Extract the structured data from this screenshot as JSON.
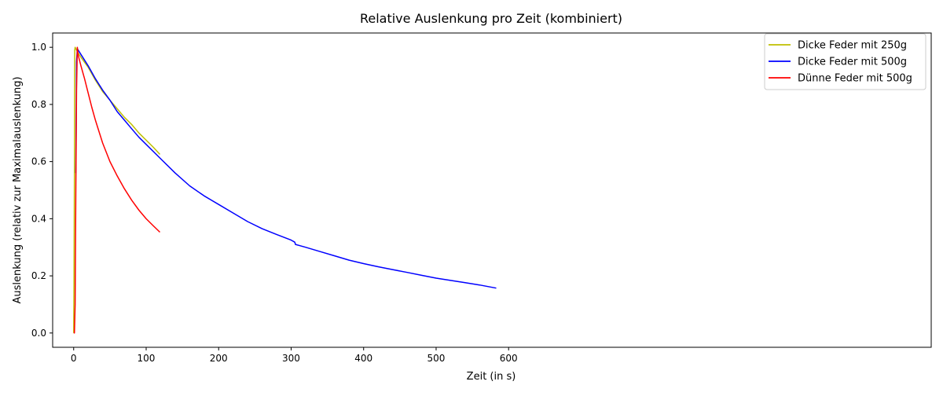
{
  "chart_data": {
    "type": "line",
    "title": "Relative Auslenkung pro Zeit (kombiniert)",
    "xlabel": "Zeit (in s)",
    "ylabel": "Auslenkung (relativ zur Maximalauslenkung)",
    "xlim": [
      -29,
      1183
    ],
    "ylim": [
      -0.05,
      1.05
    ],
    "xticks": [
      0,
      100,
      200,
      300,
      400,
      500,
      600
    ],
    "xtick_labels": [
      "0",
      "100",
      "200",
      "300",
      "400",
      "500",
      "600"
    ],
    "yticks": [
      0.0,
      0.2,
      0.4,
      0.6,
      0.8,
      1.0
    ],
    "ytick_labels": [
      "0.0",
      "0.2",
      "0.4",
      "0.6",
      "0.8",
      "1.0"
    ],
    "grid": false,
    "legend_position": "top-right",
    "series": [
      {
        "name": "Dicke Feder mit 250g",
        "color": "#bfbf00",
        "x": [
          0,
          0.5,
          1,
          1.5,
          2,
          3,
          5,
          10,
          20,
          30,
          40,
          50,
          60,
          70,
          80,
          90,
          100,
          110,
          119
        ],
        "y": [
          0.0,
          0.2,
          0.55,
          0.99,
          1.0,
          0.995,
          0.985,
          0.965,
          0.93,
          0.885,
          0.845,
          0.815,
          0.785,
          0.755,
          0.73,
          0.7,
          0.675,
          0.65,
          0.625
        ]
      },
      {
        "name": "Dicke Feder mit 500g",
        "color": "#0000ff",
        "x": [
          3,
          4,
          5,
          10,
          20,
          30,
          40,
          50,
          60,
          70,
          80,
          90,
          100,
          120,
          140,
          160,
          180,
          200,
          220,
          240,
          260,
          280,
          300,
          305,
          306,
          320,
          340,
          360,
          380,
          400,
          420,
          440,
          460,
          480,
          500,
          520,
          540,
          560,
          583
        ],
        "y": [
          0.56,
          0.95,
          0.995,
          0.975,
          0.935,
          0.89,
          0.85,
          0.815,
          0.775,
          0.745,
          0.715,
          0.685,
          0.66,
          0.61,
          0.56,
          0.515,
          0.48,
          0.45,
          0.42,
          0.39,
          0.365,
          0.345,
          0.325,
          0.318,
          0.31,
          0.3,
          0.285,
          0.27,
          0.255,
          0.243,
          0.232,
          0.222,
          0.212,
          0.202,
          0.192,
          0.184,
          0.176,
          0.168,
          0.157
        ]
      },
      {
        "name": "Dünne Feder mit 500g",
        "color": "#ff0000",
        "x": [
          0,
          1,
          2,
          3,
          4,
          5,
          6,
          8,
          10,
          15,
          20,
          25,
          30,
          35,
          40,
          50,
          60,
          70,
          80,
          90,
          100,
          110,
          119
        ],
        "y": [
          0.0,
          0.0,
          0.1,
          0.5,
          0.85,
          1.0,
          0.975,
          0.955,
          0.935,
          0.89,
          0.84,
          0.79,
          0.745,
          0.705,
          0.665,
          0.6,
          0.55,
          0.505,
          0.465,
          0.43,
          0.4,
          0.375,
          0.353
        ]
      }
    ]
  }
}
